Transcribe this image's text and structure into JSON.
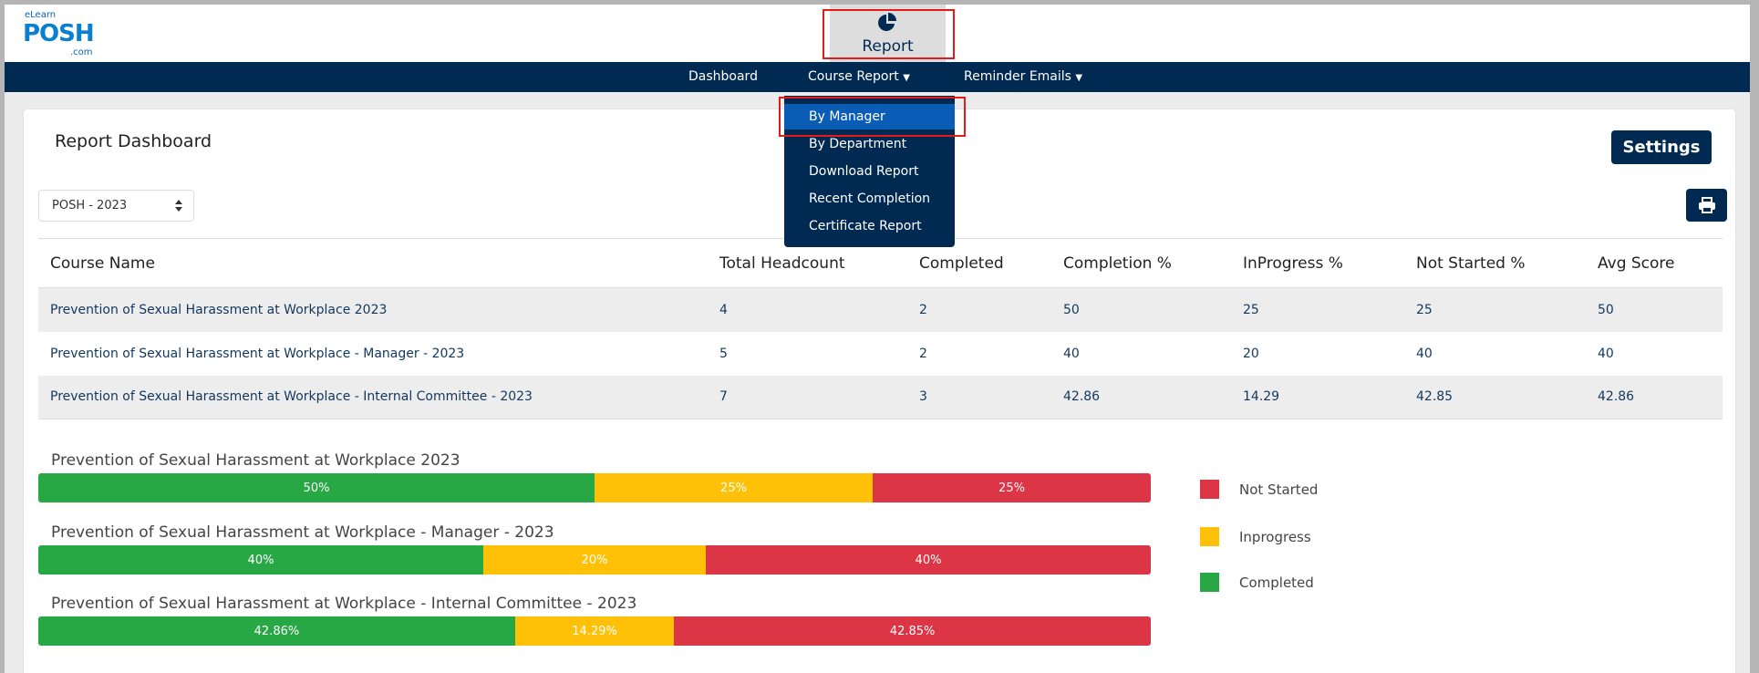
{
  "header": {
    "logo": "eLearn POSH .com",
    "report_tab": "Report"
  },
  "nav": {
    "items": [
      "Dashboard",
      "Course Report",
      "Reminder Emails"
    ]
  },
  "dropdown": {
    "items": [
      "By Manager",
      "By Department",
      "Download Report",
      "Recent Completion",
      "Certificate Report"
    ],
    "active": "By Manager"
  },
  "page": {
    "title": "Report Dashboard",
    "settings_label": "Settings",
    "select_value": "POSH - 2023"
  },
  "table": {
    "headers": [
      "Course Name",
      "Total Headcount",
      "Completed",
      "Completion %",
      "InProgress %",
      "Not Started %",
      "Avg Score"
    ],
    "rows": [
      [
        "Prevention of Sexual Harassment at Workplace 2023",
        "4",
        "2",
        "50",
        "25",
        "25",
        "50"
      ],
      [
        "Prevention of Sexual Harassment at Workplace - Manager - 2023",
        "5",
        "2",
        "40",
        "20",
        "40",
        "40"
      ],
      [
        "Prevention of Sexual Harassment at Workplace - Internal Committee - 2023",
        "7",
        "3",
        "42.86",
        "14.29",
        "42.85",
        "42.86"
      ]
    ]
  },
  "chart_data": {
    "type": "bar",
    "stacked": true,
    "orientation": "horizontal",
    "categories": [
      "Prevention of Sexual Harassment at Workplace 2023",
      "Prevention of Sexual Harassment at Workplace - Manager - 2023",
      "Prevention of Sexual Harassment at Workplace - Internal Committee - 2023"
    ],
    "series": [
      {
        "name": "Completed",
        "color": "#28a745",
        "values": [
          50,
          40,
          42.86
        ],
        "labels": [
          "50%",
          "40%",
          "42.86%"
        ]
      },
      {
        "name": "Inprogress",
        "color": "#ffc107",
        "values": [
          25,
          20,
          14.29
        ],
        "labels": [
          "25%",
          "20%",
          "14.29%"
        ]
      },
      {
        "name": "Not Started",
        "color": "#dc3545",
        "values": [
          25,
          40,
          42.85
        ],
        "labels": [
          "25%",
          "40%",
          "42.85%"
        ]
      }
    ],
    "legend": [
      "Not Started",
      "Inprogress",
      "Completed"
    ],
    "legend_position": "right"
  }
}
